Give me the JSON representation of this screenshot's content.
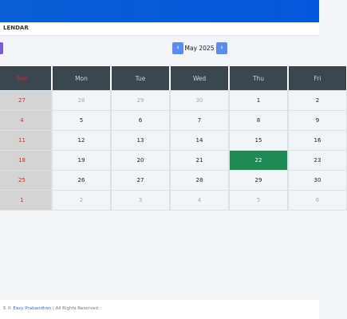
{
  "header": {
    "title": "LENDAR"
  },
  "nav": {
    "month": "May 2025"
  },
  "calendar": {
    "weekdays": [
      "Sun",
      "Mon",
      "Tue",
      "Wed",
      "Thu",
      "Fri"
    ],
    "weeks": [
      [
        "27",
        "28",
        "29",
        "30",
        "1",
        "2"
      ],
      [
        "4",
        "5",
        "6",
        "7",
        "8",
        "9"
      ],
      [
        "11",
        "12",
        "13",
        "14",
        "15",
        "16"
      ],
      [
        "18",
        "19",
        "20",
        "21",
        "22",
        "23"
      ],
      [
        "25",
        "26",
        "27",
        "28",
        "29",
        "30"
      ],
      [
        "1",
        "2",
        "3",
        "4",
        "5",
        "6"
      ]
    ]
  },
  "footer": {
    "prefix": "5 ©",
    "link": "Easy Prabandhan",
    "suffix": "| All Rights Reserved."
  }
}
